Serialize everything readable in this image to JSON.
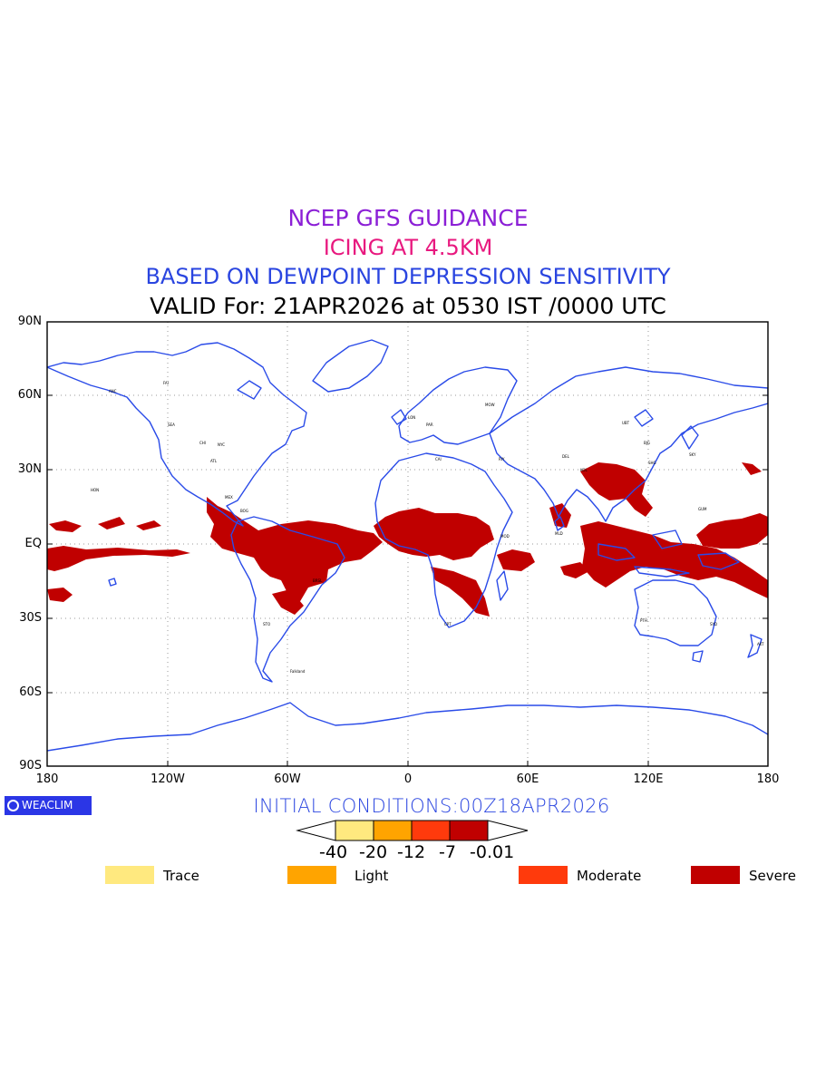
{
  "titles": {
    "line1": "NCEP GFS GUIDANCE",
    "line2": "ICING AT 4.5KM",
    "line3": "BASED ON DEWPOINT DEPRESSION SENSITIVITY",
    "line4": "VALID For: 21APR2026 at 0530 IST /0000 UTC",
    "colors": {
      "line1": "#8b1fd6",
      "line2": "#e8197f",
      "line3": "#2a45e0",
      "coast": "#2a4be8"
    }
  },
  "axes": {
    "lat_labels": [
      "90N",
      "60N",
      "30N",
      "EQ",
      "30S",
      "60S",
      "90S"
    ],
    "lon_labels": [
      "180",
      "120W",
      "60W",
      "0",
      "60E",
      "120E",
      "180"
    ]
  },
  "branding": {
    "label": "WEACLIM",
    "bg": "#2b36e6",
    "icon": "copyright-circle-icon"
  },
  "initial_conditions": "INITIAL CONDITIONS:00Z18APR2026",
  "colorbar": {
    "labels": [
      "-40",
      "-20",
      "-12",
      "-7",
      "-0.01"
    ],
    "colors": [
      "#ffe97f",
      "#ffa400",
      "#ff3a0c",
      "#c00000"
    ]
  },
  "legend": [
    {
      "label": "Trace",
      "color": "#ffe97f"
    },
    {
      "label": "Light",
      "color": "#ffa400"
    },
    {
      "label": "Moderate",
      "color": "#ff3a0c"
    },
    {
      "label": "Severe",
      "color": "#c00000"
    }
  ]
}
